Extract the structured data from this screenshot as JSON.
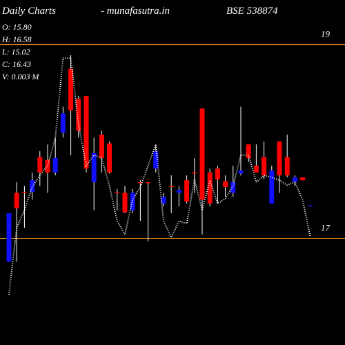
{
  "chart_data": {
    "type": "candlestick",
    "title": "Daily Charts",
    "subtitle": "-  munafasutra.in",
    "symbol": "BSE 538874",
    "info": [
      "O: 15.80",
      "H: 16.58",
      "L: 15.02",
      "C: 16.43",
      "V: 0.003 M"
    ],
    "ylim": [
      15.9,
      19.46
    ],
    "yticks": [
      17,
      19
    ],
    "grid": true,
    "grid_color": "#e08a1e",
    "up_color": "#1010ff",
    "down_color": "#ff0000",
    "line_color": "#ffffff",
    "open": [
      16.76,
      17.47,
      17.48,
      17.48,
      17.84,
      17.81,
      17.68,
      18.09,
      18.75,
      18.44,
      18.47,
      17.58,
      18.07,
      17.98,
      17.48,
      17.47,
      17.29,
      17.58,
      17.58,
      17.72,
      17.36,
      17.54,
      17.47,
      17.6,
      17.68,
      18.34,
      17.68,
      17.72,
      17.59,
      17.47,
      17.67,
      17.97,
      17.75,
      17.84,
      17.36,
      18.0,
      17.84,
      17.58,
      17.63,
      17.33
    ],
    "high": [
      17.26,
      17.58,
      17.54,
      17.68,
      17.9,
      17.97,
      18.04,
      18.36,
      18.89,
      18.47,
      18.47,
      18.04,
      18.11,
      18.0,
      17.51,
      17.54,
      17.51,
      17.6,
      17.58,
      17.97,
      17.47,
      17.65,
      17.54,
      17.65,
      17.83,
      18.34,
      17.72,
      17.75,
      17.65,
      17.75,
      18.36,
      17.97,
      17.97,
      18.0,
      17.75,
      18.0,
      18.07,
      17.65,
      17.63,
      17.34
    ],
    "low": [
      16.76,
      16.76,
      17.11,
      17.4,
      17.54,
      17.47,
      17.65,
      18.04,
      17.86,
      18.04,
      17.68,
      17.29,
      17.68,
      17.67,
      17.29,
      17.26,
      17.26,
      17.18,
      16.97,
      17.68,
      17.33,
      17.26,
      17.33,
      17.36,
      17.47,
      17.04,
      17.33,
      17.36,
      17.43,
      17.43,
      17.65,
      17.79,
      17.68,
      17.61,
      17.36,
      17.47,
      17.63,
      17.54,
      17.6,
      17.33
    ],
    "close": [
      17.26,
      17.31,
      17.47,
      17.6,
      17.68,
      17.68,
      17.83,
      18.29,
      18.32,
      18.11,
      17.72,
      17.88,
      17.83,
      17.68,
      17.47,
      17.27,
      17.47,
      17.57,
      17.57,
      17.9,
      17.43,
      17.53,
      17.5,
      17.38,
      17.67,
      17.4,
      17.36,
      17.61,
      17.53,
      17.58,
      17.7,
      17.83,
      17.68,
      17.65,
      17.7,
      17.65,
      17.65,
      17.63,
      17.6,
      17.34
    ],
    "line_values": [
      16.42,
      17.11,
      17.29,
      17.53,
      17.65,
      17.75,
      18.04,
      18.86,
      18.86,
      18.18,
      17.75,
      17.86,
      17.83,
      17.54,
      17.18,
      17.04,
      17.4,
      17.53,
      17.75,
      17.97,
      17.18,
      17.01,
      17.18,
      17.15,
      17.61,
      17.29,
      17.6,
      17.36,
      17.41,
      17.54,
      17.86,
      17.86,
      17.58,
      17.65,
      17.63,
      17.6,
      17.55,
      17.58,
      17.4,
      17.01
    ]
  }
}
